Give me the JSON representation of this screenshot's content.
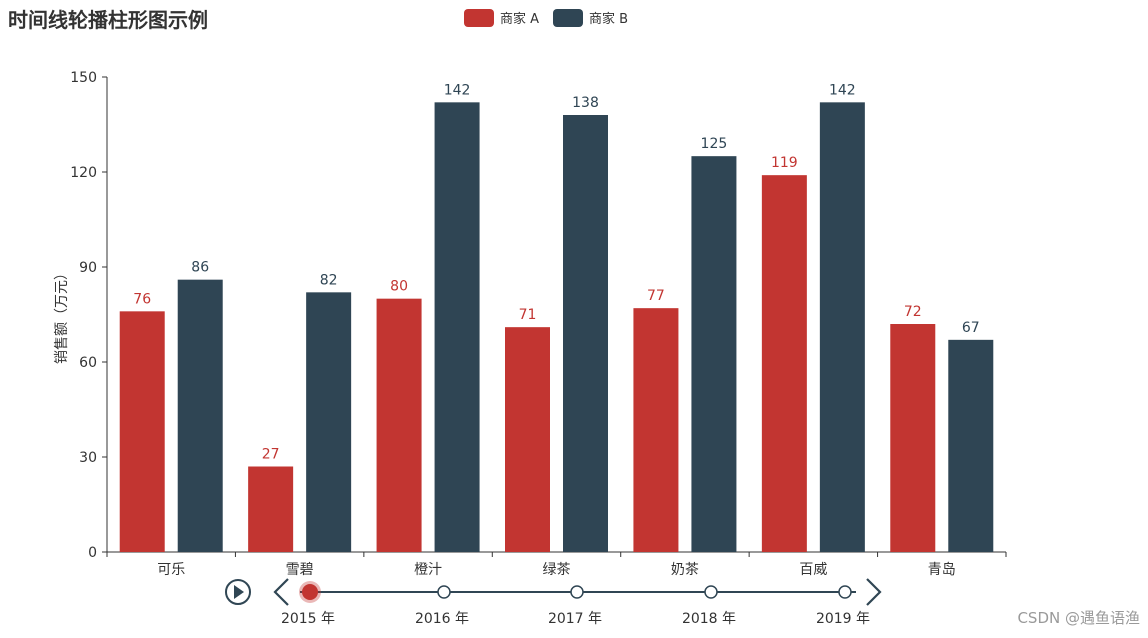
{
  "title": "时间线轮播柱形图示例",
  "watermark": "CSDN @遇鱼语渔",
  "colors": {
    "series_a": "#c23531",
    "series_b": "#2f4554",
    "axis": "#333333",
    "timeline": "#304654"
  },
  "chart_data": {
    "type": "bar",
    "categories": [
      "可乐",
      "雪碧",
      "橙汁",
      "绿茶",
      "奶茶",
      "百威",
      "青岛"
    ],
    "series": [
      {
        "name": "商家 A",
        "values": [
          76,
          27,
          80,
          71,
          77,
          119,
          72
        ]
      },
      {
        "name": "商家 B",
        "values": [
          86,
          82,
          142,
          138,
          125,
          142,
          67
        ]
      }
    ],
    "title": "时间线轮播柱形图示例",
    "xlabel": "",
    "ylabel": "销售额（万元）",
    "ylim": [
      0,
      150
    ],
    "yticks": [
      0,
      30,
      60,
      90,
      120,
      150
    ],
    "grid": false,
    "legend_position": "top-center"
  },
  "timeline": {
    "labels": [
      "2015 年",
      "2016 年",
      "2017 年",
      "2018 年",
      "2019 年"
    ],
    "current": 0,
    "play_icon": "play-icon",
    "prev_icon": "chevron-left-icon",
    "next_icon": "chevron-right-icon"
  }
}
